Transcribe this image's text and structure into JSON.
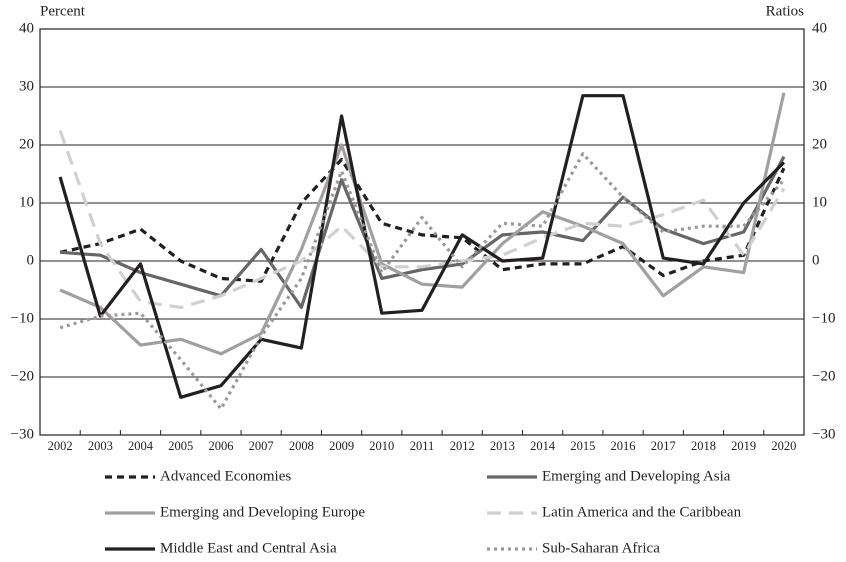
{
  "chart_data": {
    "type": "line",
    "y_label": "Percent",
    "y2_label": "Ratios",
    "categories": [
      "2002",
      "2003",
      "2004",
      "2005",
      "2006",
      "2007",
      "2008",
      "2009",
      "2010",
      "2011",
      "2012",
      "2013",
      "2014",
      "2015",
      "2016",
      "2017",
      "2018",
      "2019",
      "2020"
    ],
    "ylim": [
      -30,
      40
    ],
    "yticks": [
      {
        "value": -30,
        "label": "−30"
      },
      {
        "value": -20,
        "label": "−20"
      },
      {
        "value": -10,
        "label": "−10"
      },
      0,
      10,
      20,
      30,
      40
    ],
    "y2lim": [
      -30,
      40
    ],
    "y2ticks": [
      {
        "value": -30,
        "label": "−30"
      },
      {
        "value": -20,
        "label": "−20"
      },
      {
        "value": -10,
        "label": "−10"
      },
      0,
      10,
      20,
      30,
      40
    ],
    "grid": true,
    "series": [
      {
        "name": "Advanced Economies",
        "color": "#231f20",
        "line_style": "dashed",
        "values": [
          1.5,
          3,
          5.5,
          0,
          -3,
          -3.5,
          10,
          17.5,
          6.5,
          4.5,
          4,
          -1.5,
          -0.5,
          -0.5,
          2.5,
          -2.5,
          0,
          1,
          16
        ]
      },
      {
        "name": "Emerging and Developing Asia",
        "color": "#666666",
        "line_style": "solid",
        "values": [
          1.5,
          1,
          -2,
          -4,
          -6,
          2,
          -8,
          14,
          -3,
          -1.5,
          -0.5,
          4.5,
          5,
          3.5,
          11,
          5.5,
          3,
          5,
          18
        ]
      },
      {
        "name": "Emerging and Developing Europe",
        "color": "#a0a0a0",
        "line_style": "solid",
        "values": [
          -5,
          -8,
          -14.5,
          -13.5,
          -16,
          -12.5,
          2,
          20,
          -0.5,
          -4,
          -4.5,
          3,
          8.5,
          6,
          3,
          -6,
          -1,
          -2,
          29
        ]
      },
      {
        "name": "Latin America and the Caribbean",
        "color": "#d0d0d0",
        "line_style": "long-dashed",
        "values": [
          22.5,
          3,
          -7,
          -8,
          -6,
          -3,
          0,
          6,
          -1,
          -1,
          0,
          1,
          4,
          6.5,
          6,
          8,
          10.5,
          1,
          12.5
        ]
      },
      {
        "name": "Middle East and Central Asia",
        "color": "#231f20",
        "line_style": "solid",
        "values": [
          14.5,
          -9.5,
          -0.5,
          -23.5,
          -21.5,
          -13.5,
          -15,
          25,
          -9,
          -8.5,
          4.5,
          0,
          0.5,
          28.5,
          28.5,
          0.5,
          -0.5,
          10,
          17
        ]
      },
      {
        "name": "Sub-Saharan Africa",
        "color": "#9a9a9a",
        "line_style": "dotted",
        "values": [
          -11.5,
          -9.5,
          -9,
          -17,
          -25.5,
          -13,
          -3,
          15.5,
          -2,
          7.5,
          -1,
          6.5,
          6,
          18.5,
          11,
          5,
          6,
          6,
          14
        ]
      }
    ]
  }
}
